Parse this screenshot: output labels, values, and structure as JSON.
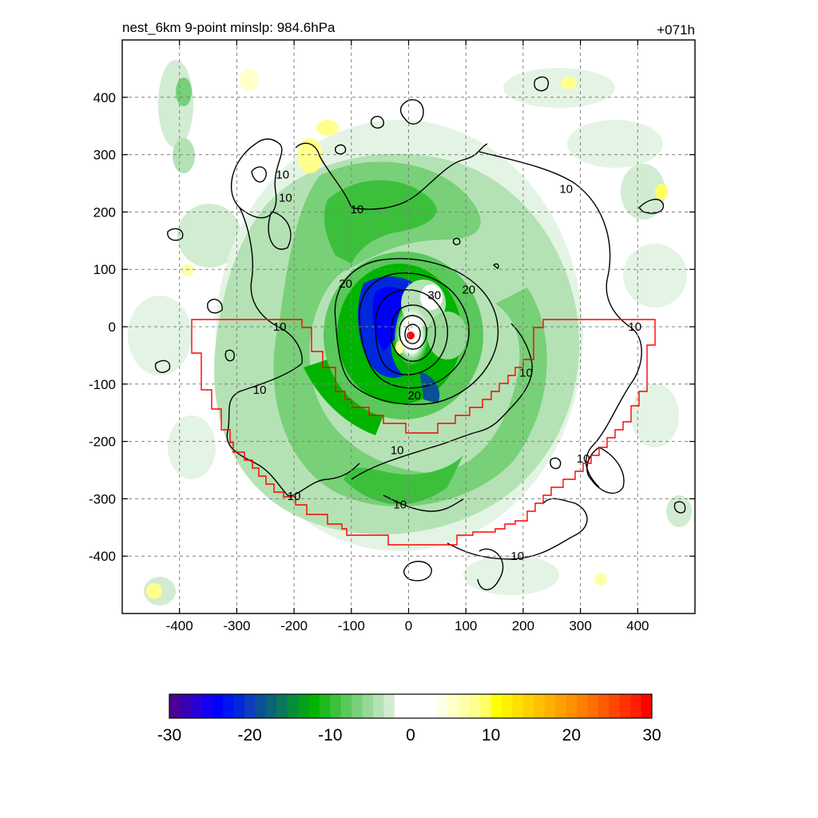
{
  "chart_data": {
    "type": "heatmap",
    "title_left": "nest_6km  9-point minslp: 984.6hPa",
    "title_right": "+071h",
    "xlabel": "",
    "ylabel": "",
    "xlim": [
      -500,
      500
    ],
    "ylim": [
      -500,
      500
    ],
    "x_ticks": [
      -400,
      -300,
      -200,
      -100,
      0,
      100,
      200,
      300,
      400
    ],
    "y_ticks": [
      400,
      300,
      200,
      100,
      0,
      -100,
      -200,
      -300,
      -400
    ],
    "grid": true,
    "colorbar": {
      "min": -30,
      "max": 30,
      "ticks": [
        -30,
        -20,
        -10,
        0,
        10,
        20,
        30
      ],
      "colors": [
        "#4b0096",
        "#3a00b4",
        "#2900d2",
        "#1400f0",
        "#0000ff",
        "#0014f0",
        "#0028dc",
        "#0d3cbe",
        "#0a5096",
        "#0a6478",
        "#08785a",
        "#068c3c",
        "#04a01e",
        "#00b400",
        "#1eba1e",
        "#3cc03c",
        "#5ac85a",
        "#78d078",
        "#96d896",
        "#b4e2b4",
        "#d2ecd2",
        "#ffffff",
        "#ffffff",
        "#ffffff",
        "#ffffff",
        "#ffffe6",
        "#ffffc8",
        "#ffffaa",
        "#ffff8c",
        "#ffff64",
        "#ffff00",
        "#fff000",
        "#ffe000",
        "#ffd000",
        "#ffc000",
        "#ffb000",
        "#ffa000",
        "#ff9000",
        "#ff8000",
        "#ff6e00",
        "#ff5a00",
        "#ff4600",
        "#ff3200",
        "#ff1e00",
        "#ff0000"
      ]
    },
    "contour_labels": [
      {
        "text": "10",
        "x": -220,
        "y": 265
      },
      {
        "text": "10",
        "x": -215,
        "y": 225
      },
      {
        "text": "10",
        "x": -90,
        "y": 205
      },
      {
        "text": "10",
        "x": 275,
        "y": 240
      },
      {
        "text": "20",
        "x": -110,
        "y": 75
      },
      {
        "text": "30",
        "x": 45,
        "y": 55
      },
      {
        "text": "20",
        "x": 105,
        "y": 65
      },
      {
        "text": "10",
        "x": -225,
        "y": 0
      },
      {
        "text": "10",
        "x": 395,
        "y": 0
      },
      {
        "text": "20",
        "x": 10,
        "y": -120
      },
      {
        "text": "10",
        "x": 205,
        "y": -80
      },
      {
        "text": "10",
        "x": -260,
        "y": -110
      },
      {
        "text": "10",
        "x": -20,
        "y": -215
      },
      {
        "text": "10",
        "x": 305,
        "y": -230
      },
      {
        "text": "10",
        "x": -200,
        "y": -295
      },
      {
        "text": "10",
        "x": -15,
        "y": -310
      },
      {
        "text": "10",
        "x": 190,
        "y": -400
      }
    ],
    "storm_center": {
      "x": 3,
      "y": -15
    }
  }
}
